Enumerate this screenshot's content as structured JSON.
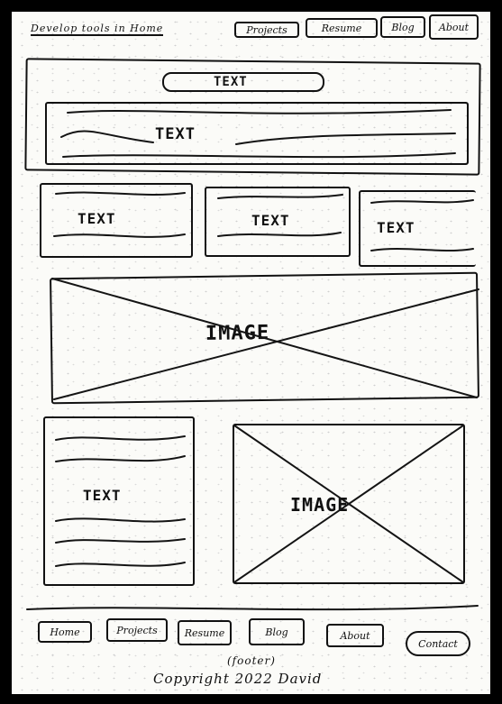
{
  "header": {
    "logo_text": "Develop tools in Home",
    "nav": [
      "Projects",
      "Resume",
      "Blog",
      "About"
    ]
  },
  "hero": {
    "banner_label": "TEXT",
    "text_label": "TEXT"
  },
  "cards": [
    {
      "label": "TEXT"
    },
    {
      "label": "TEXT"
    },
    {
      "label": "TEXT"
    }
  ],
  "feature_image": {
    "label": "IMAGE"
  },
  "split": {
    "text_label": "TEXT",
    "image_label": "IMAGE"
  },
  "footer": {
    "nav": [
      "Home",
      "Projects",
      "Resume",
      "Blog",
      "About",
      "Contact"
    ],
    "caption": "(footer)",
    "copyright": "Copyright 2022 David"
  }
}
